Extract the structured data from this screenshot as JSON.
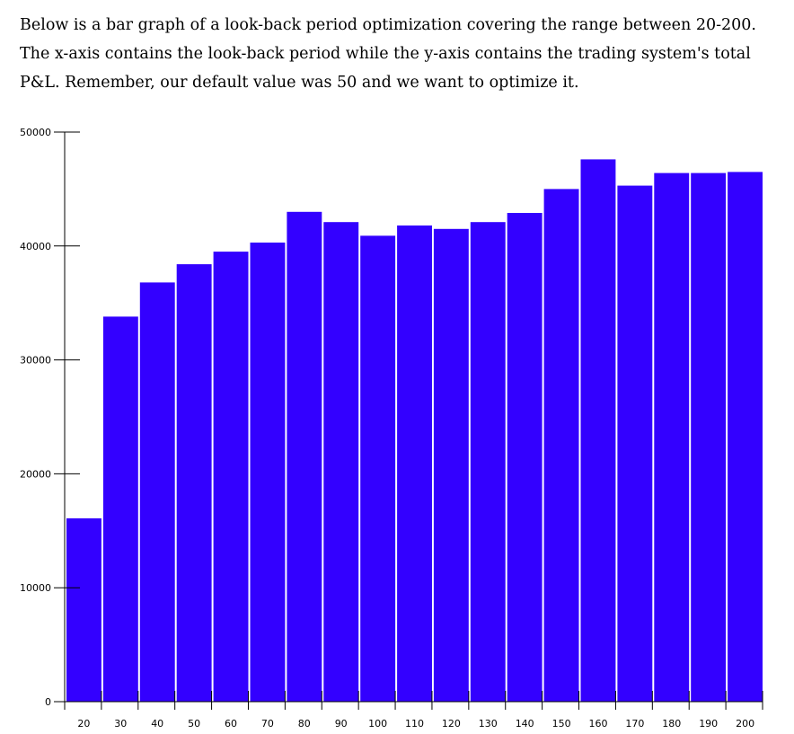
{
  "intro": {
    "line1": "Below is a bar graph of a look-back period optimization covering the range between 20-200.",
    "line2": "The x-axis contains the look-back period while the y-axis contains the trading system's total",
    "line3": "P&L. Remember, our default value was 50 and we want to optimize it."
  },
  "chart_data": {
    "type": "bar",
    "categories": [
      "20",
      "30",
      "40",
      "50",
      "60",
      "70",
      "80",
      "90",
      "100",
      "110",
      "120",
      "130",
      "140",
      "150",
      "160",
      "170",
      "180",
      "190",
      "200"
    ],
    "values": [
      16100,
      33800,
      36800,
      38400,
      39500,
      40300,
      43000,
      42100,
      40900,
      41800,
      41500,
      42100,
      42900,
      45000,
      47600,
      45300,
      46400,
      46400,
      46500
    ],
    "ylim": [
      0,
      50000
    ],
    "yticks": [
      0,
      10000,
      20000,
      30000,
      40000,
      50000
    ],
    "title": "",
    "xlabel": "",
    "ylabel": "",
    "grid": false,
    "bar_color": "#3300ff"
  }
}
